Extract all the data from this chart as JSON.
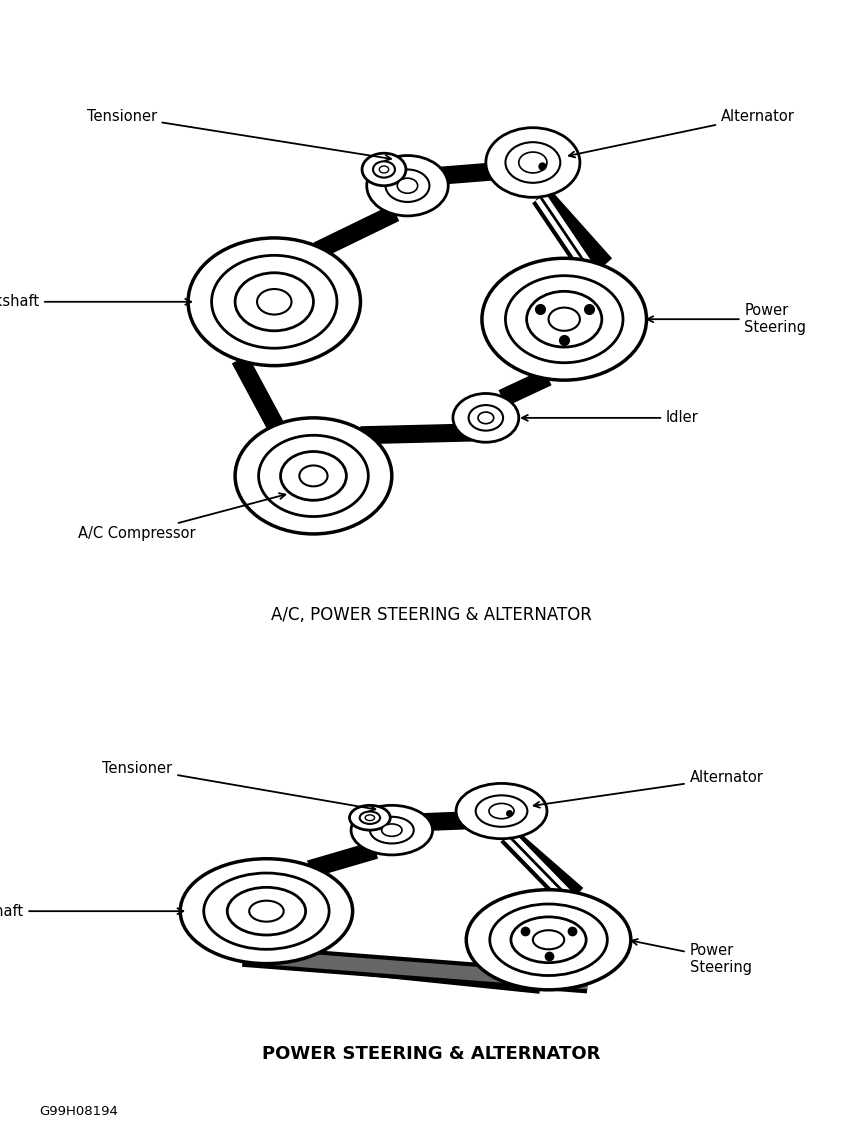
{
  "bg_color": "#ffffff",
  "title1": "A/C, POWER STEERING & ALTERNATOR",
  "title2": "POWER STEERING & ALTERNATOR",
  "code": "G99H08194",
  "d1": {
    "crank": [
      3.5,
      5.8
    ],
    "tens": [
      5.2,
      7.8
    ],
    "alt": [
      6.8,
      8.2
    ],
    "ps": [
      7.2,
      5.5
    ],
    "idler": [
      6.2,
      3.8
    ],
    "ac": [
      4.0,
      2.8
    ],
    "crank_r": [
      1.1,
      0.8,
      0.5,
      0.22
    ],
    "tens_r": [
      0.52,
      0.28,
      0.13
    ],
    "alt_r": [
      0.6,
      0.35,
      0.18
    ],
    "ps_r": [
      1.05,
      0.75,
      0.48,
      0.2
    ],
    "idler_r": [
      0.42,
      0.22,
      0.1
    ],
    "ac_r": [
      1.0,
      0.7,
      0.42,
      0.18
    ]
  },
  "d2": {
    "crank": [
      3.4,
      4.8
    ],
    "tens": [
      5.0,
      6.5
    ],
    "alt": [
      6.4,
      6.9
    ],
    "ps": [
      7.0,
      4.2
    ],
    "crank_r": [
      1.1,
      0.8,
      0.5,
      0.22
    ],
    "tens_r": [
      0.52,
      0.28,
      0.13
    ],
    "alt_r": [
      0.58,
      0.33,
      0.16
    ],
    "ps_r": [
      1.05,
      0.75,
      0.48,
      0.2
    ]
  }
}
